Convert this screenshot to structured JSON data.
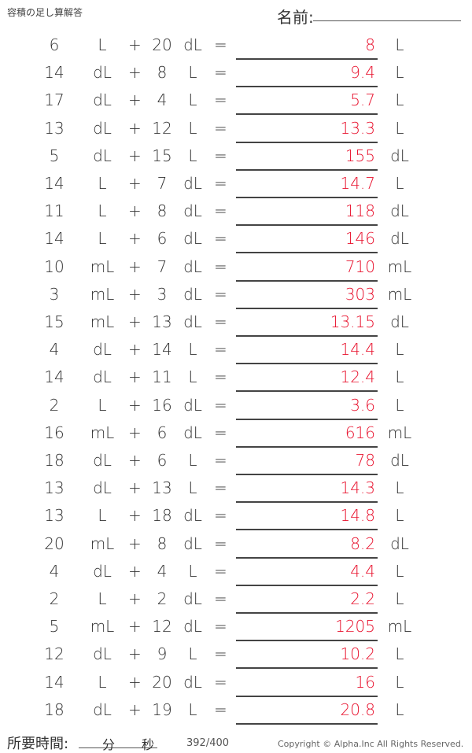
{
  "header": {
    "title": "容積の足し算解答",
    "name_label": "名前:"
  },
  "rows": [
    {
      "a": "6",
      "ua": "L",
      "b": "20",
      "ub": "dL",
      "ans": "8",
      "u": "L"
    },
    {
      "a": "14",
      "ua": "dL",
      "b": "8",
      "ub": "L",
      "ans": "9.4",
      "u": "L"
    },
    {
      "a": "17",
      "ua": "dL",
      "b": "4",
      "ub": "L",
      "ans": "5.7",
      "u": "L"
    },
    {
      "a": "13",
      "ua": "dL",
      "b": "12",
      "ub": "L",
      "ans": "13.3",
      "u": "L"
    },
    {
      "a": "5",
      "ua": "dL",
      "b": "15",
      "ub": "L",
      "ans": "155",
      "u": "dL"
    },
    {
      "a": "14",
      "ua": "L",
      "b": "7",
      "ub": "dL",
      "ans": "14.7",
      "u": "L"
    },
    {
      "a": "11",
      "ua": "L",
      "b": "8",
      "ub": "dL",
      "ans": "118",
      "u": "dL"
    },
    {
      "a": "14",
      "ua": "L",
      "b": "6",
      "ub": "dL",
      "ans": "146",
      "u": "dL"
    },
    {
      "a": "10",
      "ua": "mL",
      "b": "7",
      "ub": "dL",
      "ans": "710",
      "u": "mL"
    },
    {
      "a": "3",
      "ua": "mL",
      "b": "3",
      "ub": "dL",
      "ans": "303",
      "u": "mL"
    },
    {
      "a": "15",
      "ua": "mL",
      "b": "13",
      "ub": "dL",
      "ans": "13.15",
      "u": "dL"
    },
    {
      "a": "4",
      "ua": "dL",
      "b": "14",
      "ub": "L",
      "ans": "14.4",
      "u": "L"
    },
    {
      "a": "14",
      "ua": "dL",
      "b": "11",
      "ub": "L",
      "ans": "12.4",
      "u": "L"
    },
    {
      "a": "2",
      "ua": "L",
      "b": "16",
      "ub": "dL",
      "ans": "3.6",
      "u": "L"
    },
    {
      "a": "16",
      "ua": "mL",
      "b": "6",
      "ub": "dL",
      "ans": "616",
      "u": "mL"
    },
    {
      "a": "18",
      "ua": "dL",
      "b": "6",
      "ub": "L",
      "ans": "78",
      "u": "dL"
    },
    {
      "a": "13",
      "ua": "dL",
      "b": "13",
      "ub": "L",
      "ans": "14.3",
      "u": "L"
    },
    {
      "a": "13",
      "ua": "L",
      "b": "18",
      "ub": "dL",
      "ans": "14.8",
      "u": "L"
    },
    {
      "a": "20",
      "ua": "mL",
      "b": "8",
      "ub": "dL",
      "ans": "8.2",
      "u": "dL"
    },
    {
      "a": "4",
      "ua": "dL",
      "b": "4",
      "ub": "L",
      "ans": "4.4",
      "u": "L"
    },
    {
      "a": "2",
      "ua": "L",
      "b": "2",
      "ub": "dL",
      "ans": "2.2",
      "u": "L"
    },
    {
      "a": "5",
      "ua": "mL",
      "b": "12",
      "ub": "dL",
      "ans": "1205",
      "u": "mL"
    },
    {
      "a": "12",
      "ua": "dL",
      "b": "9",
      "ub": "L",
      "ans": "10.2",
      "u": "L"
    },
    {
      "a": "14",
      "ua": "L",
      "b": "20",
      "ub": "dL",
      "ans": "16",
      "u": "L"
    },
    {
      "a": "18",
      "ua": "dL",
      "b": "19",
      "ub": "L",
      "ans": "20.8",
      "u": "L"
    }
  ],
  "symbols": {
    "plus": "+",
    "equals": "="
  },
  "footer": {
    "time_label": "所要時間:",
    "minutes": "分",
    "seconds": "秒",
    "page": "392/400",
    "copyright": "Copyright © Alpha.Inc All Rights Reserved."
  },
  "colors": {
    "answer": "#e8112d"
  }
}
